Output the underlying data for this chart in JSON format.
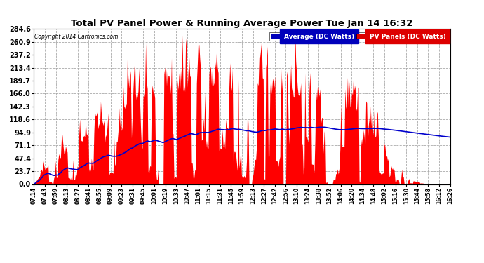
{
  "title": "Total PV Panel Power & Running Average Power Tue Jan 14 16:32",
  "copyright": "Copyright 2014 Cartronics.com",
  "yticks": [
    0.0,
    23.7,
    47.4,
    71.1,
    94.9,
    118.6,
    142.3,
    166.0,
    189.7,
    213.4,
    237.2,
    260.9,
    284.6
  ],
  "ymax": 284.6,
  "xtick_labels": [
    "07:14",
    "07:43",
    "07:59",
    "08:13",
    "08:27",
    "08:41",
    "08:55",
    "09:09",
    "09:23",
    "09:31",
    "09:45",
    "10:01",
    "10:19",
    "10:33",
    "10:47",
    "11:01",
    "11:15",
    "11:31",
    "11:45",
    "11:59",
    "12:13",
    "12:27",
    "12:42",
    "12:56",
    "13:10",
    "13:24",
    "13:38",
    "13:52",
    "14:06",
    "14:20",
    "14:34",
    "14:48",
    "15:02",
    "15:16",
    "15:30",
    "15:44",
    "15:58",
    "16:12",
    "16:26"
  ],
  "legend_avg_label": "Average (DC Watts)",
  "legend_pv_label": "PV Panels (DC Watts)",
  "legend_avg_bg": "#0000bb",
  "legend_pv_bg": "#dd0000",
  "pv_color": "#ff0000",
  "avg_color": "#0000cc",
  "plot_bg": "#ffffff",
  "fig_bg": "#ffffff",
  "grid_color": "#aaaaaa",
  "title_color": "#000000"
}
